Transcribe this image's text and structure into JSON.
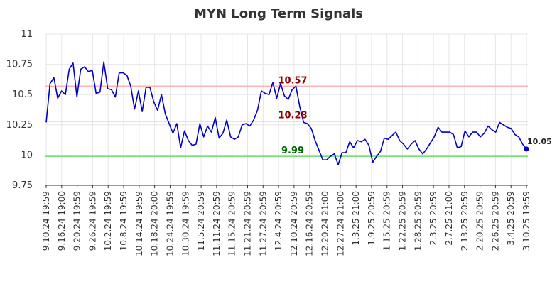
{
  "chart_data": {
    "type": "line",
    "title": "MYN Long Term Signals",
    "xlabel": "",
    "ylabel": "",
    "ylim": [
      9.75,
      11
    ],
    "yticks": [
      9.75,
      10,
      10.25,
      10.5,
      10.75,
      11
    ],
    "ytick_labels": [
      "9.75",
      "10",
      "10.25",
      "10.5",
      "10.75",
      "11"
    ],
    "grid": true,
    "x_tick_labels": [
      "9.10.24 19:59",
      "9.16.24 19:00",
      "9.20.24 19:59",
      "9.26.24 19:59",
      "10.2.24 19:59",
      "10.8.24 19:59",
      "10.14.24 19:59",
      "10.18.24 20:00",
      "10.24.24 19:59",
      "10.30.24 19:59",
      "11.5.24 20:59",
      "11.11.24 20:59",
      "11.15.24 20:59",
      "11.21.24 20:59",
      "11.27.24 20:59",
      "12.4.24 20:59",
      "12.10.24 20:59",
      "12.16.24 20:59",
      "12.20.24 21:00",
      "12.27.24 21:00",
      "1.3.25 21:00",
      "1.9.25 20:59",
      "1.15.25 20:59",
      "1.22.25 20:59",
      "1.28.25 20:59",
      "2.3.25 20:59",
      "2.7.25 21:00",
      "2.13.25 20:59",
      "2.20.25 20:59",
      "2.26.25 20:59",
      "3.4.25 20:59",
      "3.10.25 19:59"
    ],
    "series": [
      {
        "color": "#0000cc",
        "values": [
          10.27,
          10.59,
          10.64,
          10.47,
          10.53,
          10.5,
          10.71,
          10.76,
          10.48,
          10.71,
          10.73,
          10.69,
          10.7,
          10.51,
          10.52,
          10.77,
          10.55,
          10.54,
          10.48,
          10.68,
          10.68,
          10.66,
          10.57,
          10.38,
          10.53,
          10.36,
          10.56,
          10.56,
          10.44,
          10.37,
          10.5,
          10.34,
          10.26,
          10.18,
          10.26,
          10.06,
          10.2,
          10.12,
          10.08,
          10.09,
          10.26,
          10.15,
          10.24,
          10.19,
          10.31,
          10.14,
          10.18,
          10.29,
          10.15,
          10.13,
          10.15,
          10.25,
          10.26,
          10.24,
          10.29,
          10.37,
          10.53,
          10.51,
          10.5,
          10.6,
          10.47,
          10.59,
          10.49,
          10.46,
          10.54,
          10.57,
          10.4,
          10.27,
          10.26,
          10.22,
          10.12,
          10.04,
          9.96,
          9.96,
          9.99,
          10.01,
          9.92,
          10.02,
          10.02,
          10.11,
          10.06,
          10.12,
          10.11,
          10.13,
          10.08,
          9.94,
          9.99,
          10.03,
          10.14,
          10.13,
          10.16,
          10.19,
          10.12,
          10.09,
          10.05,
          10.09,
          10.12,
          10.05,
          10.01,
          10.05,
          10.1,
          10.15,
          10.23,
          10.19,
          10.19,
          10.19,
          10.17,
          10.06,
          10.07,
          10.2,
          10.15,
          10.19,
          10.19,
          10.15,
          10.18,
          10.24,
          10.21,
          10.19,
          10.27,
          10.25,
          10.23,
          10.22,
          10.17,
          10.15,
          10.09,
          10.05
        ]
      }
    ],
    "reference_lines": [
      {
        "value": 10.57,
        "label": "10.57",
        "color": "#ffb3b3",
        "label_color": "#8b0000"
      },
      {
        "value": 10.28,
        "label": "10.28",
        "color": "#ffb3b3",
        "label_color": "#8b0000"
      },
      {
        "value": 9.99,
        "label": "9.99",
        "color": "#66dd66",
        "label_color": "#006400"
      }
    ],
    "last_value": {
      "value": 10.05,
      "label": "10.05",
      "color": "#0000cc"
    }
  }
}
